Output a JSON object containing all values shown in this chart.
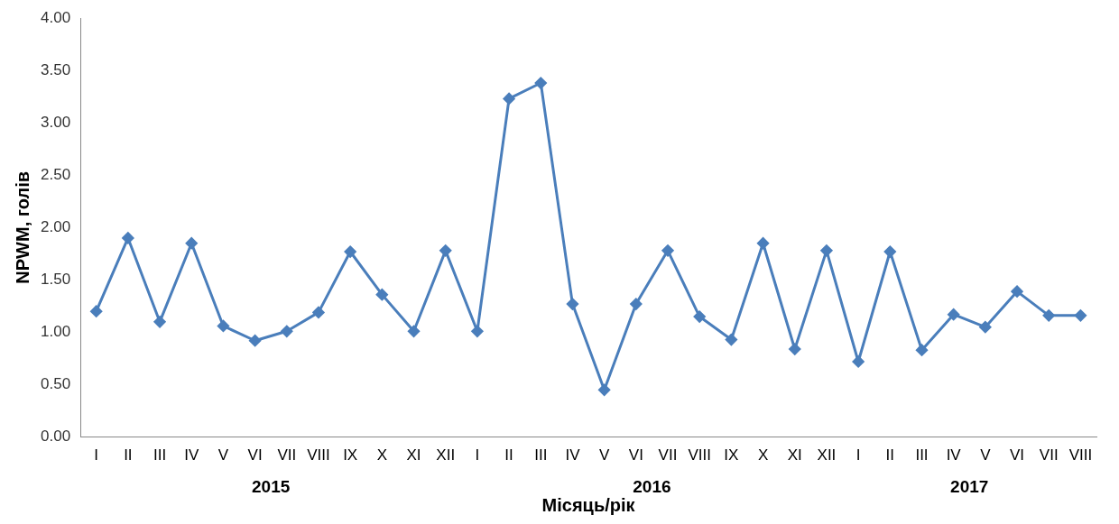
{
  "chart_data": {
    "type": "line",
    "xlabel": "Місяць/рік",
    "ylabel": "NPWM, голів",
    "categories": [
      "I",
      "II",
      "III",
      "IV",
      "V",
      "VI",
      "VII",
      "VIII",
      "IX",
      "X",
      "XI",
      "XII",
      "I",
      "II",
      "III",
      "IV",
      "V",
      "VI",
      "VII",
      "VIII",
      "IX",
      "X",
      "XI",
      "XII",
      "I",
      "II",
      "III",
      "IV",
      "V",
      "VI",
      "VII",
      "VIII"
    ],
    "series": [
      {
        "color": "#4a7ebb",
        "values": [
          1.2,
          1.9,
          1.1,
          1.85,
          1.06,
          0.92,
          1.01,
          1.19,
          1.77,
          1.36,
          1.01,
          1.78,
          1.01,
          3.23,
          3.38,
          1.27,
          0.45,
          1.27,
          1.78,
          1.15,
          0.93,
          1.85,
          0.84,
          1.78,
          0.72,
          1.77,
          0.83,
          1.17,
          1.05,
          1.39,
          1.16,
          1.16
        ]
      }
    ],
    "ylim": [
      0,
      4
    ],
    "yticks": [
      {
        "value": 0,
        "label": "0.00"
      },
      {
        "value": 0.5,
        "label": "0.50"
      },
      {
        "value": 1,
        "label": "1.00"
      },
      {
        "value": 1.5,
        "label": "1.50"
      },
      {
        "value": 2,
        "label": "2.00"
      },
      {
        "value": 2.5,
        "label": "2.50"
      },
      {
        "value": 3,
        "label": "3.00"
      },
      {
        "value": 3.5,
        "label": "3.50"
      },
      {
        "value": 4,
        "label": "4.00"
      }
    ],
    "annotations": [
      "2015",
      "2016",
      "2017"
    ],
    "grid": false,
    "legend": false,
    "marker": "diamond",
    "line_style": "solid"
  }
}
